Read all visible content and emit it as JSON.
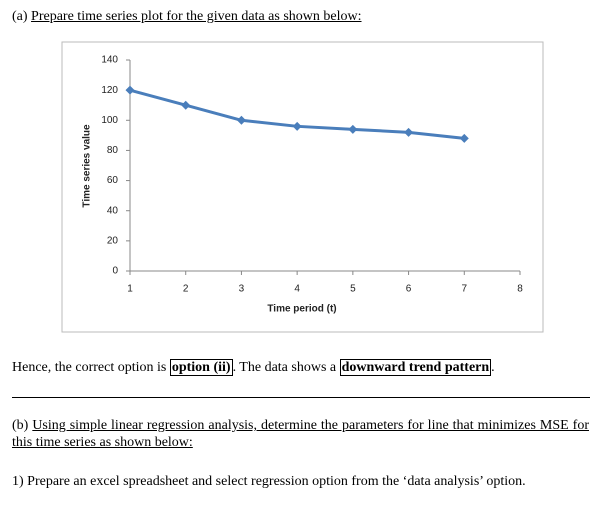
{
  "part_a": {
    "label": "(a)",
    "text": "Prepare time series plot for the given data as shown below:"
  },
  "chart_data": {
    "type": "line",
    "x": [
      1,
      2,
      3,
      4,
      5,
      6,
      7
    ],
    "series": [
      {
        "name": null,
        "color": "#4a7ebb",
        "values": [
          120,
          110,
          100,
          96,
          94,
          92,
          88
        ]
      }
    ],
    "xlim": [
      1,
      8
    ],
    "xticks": [
      1,
      2,
      3,
      4,
      5,
      6,
      7,
      8
    ],
    "ylim": [
      0,
      140
    ],
    "yticks": [
      0,
      20,
      40,
      60,
      80,
      100,
      120,
      140
    ],
    "xlabel": "Time period (t)",
    "ylabel": "Time series value",
    "grid": false
  },
  "conclusion": {
    "text1": "Hence, the correct option is",
    "option": "option (ii)",
    "text2": ". The data shows a",
    "pattern": "downward trend pattern",
    "text3": "."
  },
  "part_b": {
    "label": "(b)",
    "text": "Using simple linear regression analysis, determine the parameters for line that minimizes MSE for this time series as shown below:"
  },
  "step_1": "1) Prepare an excel spreadsheet and select regression option from the ‘data analysis’ option."
}
